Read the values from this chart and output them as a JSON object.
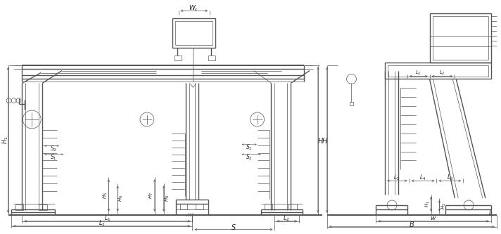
{
  "bg_color": "#ffffff",
  "line_color": "#555555",
  "lw_main": 1.0,
  "lw_thin": 0.5,
  "lw_thick": 1.5,
  "fig_width": 7.12,
  "fig_height": 3.33
}
